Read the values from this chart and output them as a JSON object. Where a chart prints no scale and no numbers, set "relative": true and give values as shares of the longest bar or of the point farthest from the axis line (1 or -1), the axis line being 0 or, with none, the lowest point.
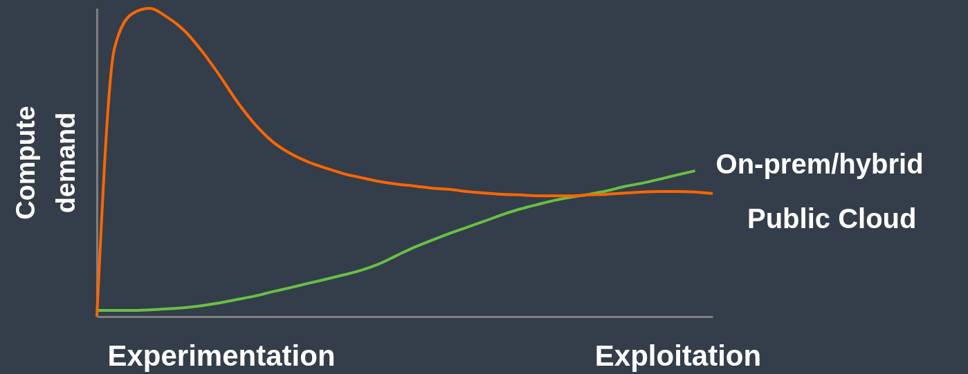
{
  "chart_data": {
    "type": "line",
    "relative": true,
    "ylabel": "Compute demand",
    "marker": "none",
    "line_style": "solid",
    "categories": [
      null,
      null,
      null,
      null,
      null,
      null,
      null,
      null,
      null,
      null,
      null,
      null,
      null,
      null,
      null,
      null,
      null,
      null,
      null,
      null,
      null,
      null,
      null,
      null,
      null,
      null,
      null,
      null,
      null,
      null,
      null,
      null,
      null,
      null,
      null,
      null
    ],
    "series": [
      {
        "name": "On-prem/hybrid",
        "color": "#6abf45",
        "values": [
          0.02,
          0.02,
          0.02,
          0.022,
          0.025,
          0.029,
          0.036,
          0.045,
          0.056,
          0.067,
          0.081,
          0.094,
          0.108,
          0.121,
          0.135,
          0.15,
          0.17,
          0.197,
          0.224,
          0.247,
          0.269,
          0.289,
          0.309,
          0.33,
          0.348,
          0.363,
          0.377,
          0.388,
          0.397,
          0.408,
          0.422,
          0.433,
          0.446,
          0.46,
          0.473,
          null
        ]
      },
      {
        "name": "Public Cloud",
        "color": "#ff6600",
        "values": [
          0,
          0.87,
          0.982,
          1,
          0.971,
          0.926,
          0.859,
          0.78,
          0.695,
          0.623,
          0.567,
          0.529,
          0.502,
          0.482,
          0.464,
          0.451,
          0.439,
          0.43,
          0.424,
          0.417,
          0.413,
          0.406,
          0.401,
          0.397,
          0.395,
          0.392,
          0.392,
          0.392,
          0.395,
          0.397,
          0.401,
          0.404,
          0.406,
          0.406,
          0.404,
          0.399
        ]
      }
    ],
    "annotations": [
      "Experimentation",
      "Exploitation"
    ]
  }
}
